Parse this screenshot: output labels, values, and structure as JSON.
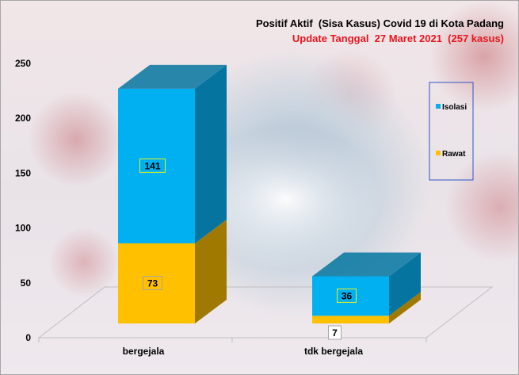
{
  "chart_data": {
    "type": "bar",
    "stacked": true,
    "title": "Positif Aktif  (Sisa Kasus) Covid 19 di Kota Padang",
    "subtitle": "Update Tanggal  27 Maret 2021  (257 kasus)",
    "categories": [
      "bergejala",
      "tdk bergejala"
    ],
    "series": [
      {
        "name": "Rawat",
        "values": [
          73,
          7
        ],
        "color": "#ffc000",
        "side_color": "#a07a00"
      },
      {
        "name": "Isolasi",
        "values": [
          141,
          36
        ],
        "color": "#00b0f0",
        "side_color": "#0575a0"
      }
    ],
    "data_labels": [
      [
        "73",
        "7"
      ],
      [
        "141",
        "36"
      ]
    ],
    "ylim": [
      0,
      250
    ],
    "yticks": [
      0,
      50,
      100,
      150,
      200,
      250
    ],
    "legend": {
      "position": "right",
      "entries": [
        "Isolasi",
        "Rawat"
      ]
    },
    "grid": false
  }
}
